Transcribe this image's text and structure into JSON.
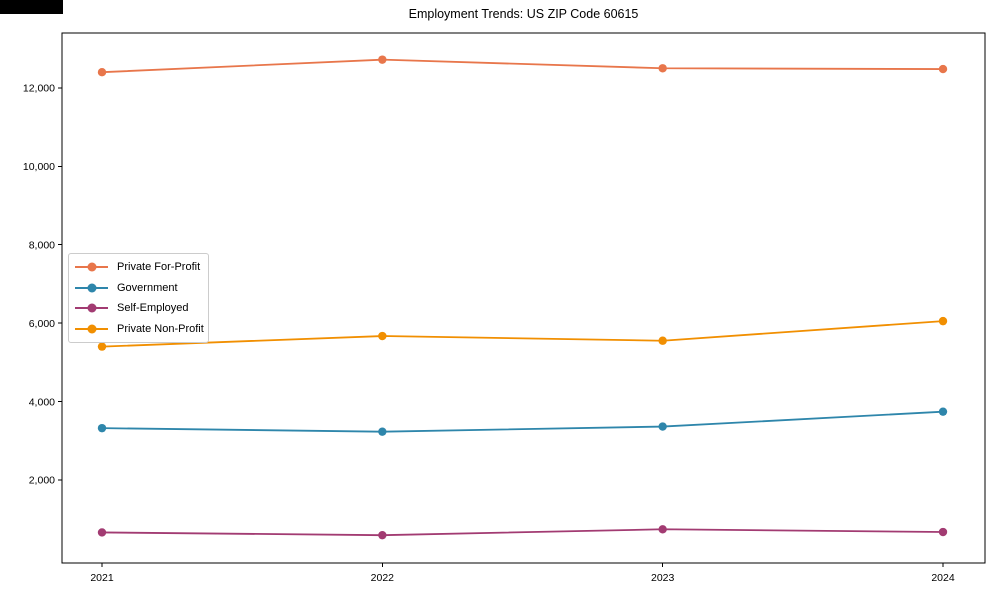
{
  "chart_data": {
    "type": "line",
    "title": "Employment Trends: US ZIP Code 60615",
    "x": [
      "2021",
      "2022",
      "2023",
      "2024"
    ],
    "series": [
      {
        "name": "Private For-Profit",
        "color": "#E8764B",
        "values": [
          12400,
          12720,
          12500,
          12480
        ]
      },
      {
        "name": "Government",
        "color": "#2E86AB",
        "values": [
          3320,
          3230,
          3360,
          3740
        ]
      },
      {
        "name": "Self-Employed",
        "color": "#A23B72",
        "values": [
          660,
          590,
          740,
          670
        ]
      },
      {
        "name": "Private Non-Profit",
        "color": "#F18F01",
        "values": [
          5400,
          5670,
          5550,
          6050
        ]
      }
    ],
    "ylim": [
      -120,
      13400
    ],
    "yticks": [
      2000,
      4000,
      6000,
      8000,
      10000,
      12000
    ],
    "ytick_labels": [
      "2,000",
      "4,000",
      "6,000",
      "8,000",
      "10,000",
      "12,000"
    ],
    "xlabel": "",
    "ylabel": "",
    "grid": false,
    "legend_position": "center-left",
    "marker": "circle",
    "axis_color": "#000000"
  }
}
